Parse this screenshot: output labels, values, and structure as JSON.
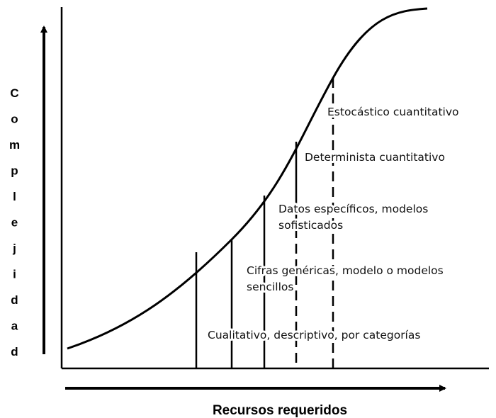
{
  "axes": {
    "y_label": "Complejidad",
    "x_label": "Recursos requeridos"
  },
  "levels": [
    {
      "lines": [
        "Cualitativo, descriptivo, por categorías"
      ]
    },
    {
      "lines": [
        "Cifras genéricas, modelo o modelos",
        "sencillos"
      ]
    },
    {
      "lines": [
        "Datos específicos, modelos",
        "sofisticados"
      ]
    },
    {
      "lines": [
        "Determinista cuantitativo"
      ]
    },
    {
      "lines": [
        "Estocástico cuantitativo"
      ]
    }
  ]
}
